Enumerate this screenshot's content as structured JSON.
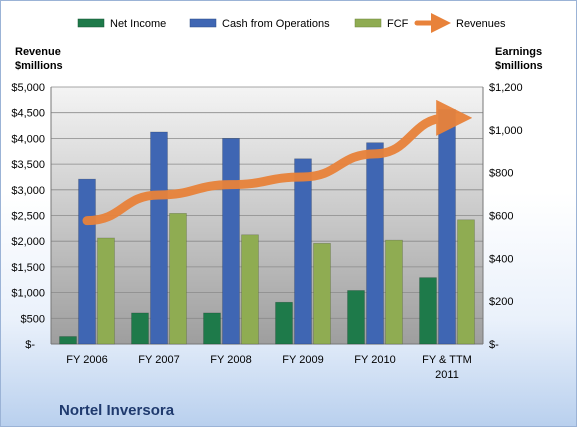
{
  "chart_data": {
    "type": "bar",
    "title": "",
    "company_name": "Nortel Inversora",
    "categories": [
      "FY 2006",
      "FY 2007",
      "FY 2008",
      "FY 2009",
      "FY 2010",
      "FY & TTM 2011"
    ],
    "left_axis": {
      "label_line1": "Revenue",
      "label_line2": "$millions",
      "ylim": [
        0,
        5000
      ],
      "ticks": [
        0,
        500,
        1000,
        1500,
        2000,
        2500,
        3000,
        3500,
        4000,
        4500,
        5000
      ],
      "tick_labels": [
        "$-",
        "$500",
        "$1,000",
        "$1,500",
        "$2,000",
        "$2,500",
        "$3,000",
        "$3,500",
        "$4,000",
        "$4,500",
        "$5,000"
      ]
    },
    "right_axis": {
      "label_line1": "Earnings",
      "label_line2": "$millions",
      "ylim": [
        0,
        1200
      ],
      "ticks": [
        0,
        200,
        400,
        600,
        800,
        1000,
        1200
      ],
      "tick_labels": [
        "$-",
        "$200",
        "$400",
        "$600",
        "$800",
        "$1,000",
        "$1,200"
      ]
    },
    "series": [
      {
        "name": "Net Income",
        "type": "bar",
        "axis": "right",
        "color": "#1e7a4a",
        "values": [
          35,
          145,
          145,
          195,
          250,
          310
        ]
      },
      {
        "name": "Cash from Operations",
        "type": "bar",
        "axis": "right",
        "color": "#3f66b3",
        "values": [
          770,
          990,
          960,
          865,
          940,
          1095
        ]
      },
      {
        "name": "FCF",
        "type": "bar",
        "axis": "right",
        "color": "#8fac52",
        "values": [
          495,
          610,
          510,
          470,
          485,
          580
        ]
      },
      {
        "name": "Revenues",
        "type": "line",
        "axis": "left",
        "color": "#e8823a",
        "values": [
          2400,
          2900,
          3100,
          3250,
          3700,
          4400
        ]
      }
    ],
    "grid": true,
    "legend_position": "top"
  }
}
